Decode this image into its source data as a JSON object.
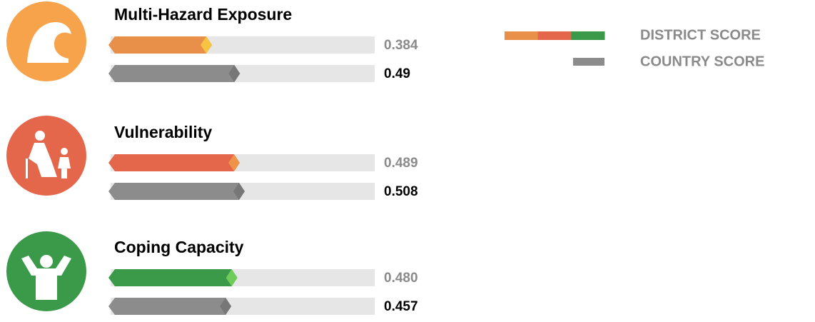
{
  "chart_data": [
    {
      "type": "bar",
      "title": "Multi-Hazard Exposure",
      "xlim": [
        0,
        1
      ],
      "series": [
        {
          "name": "DISTRICT SCORE",
          "color": "#e8904a",
          "tip_color": "#f6c343",
          "label_color": "#8a8a8a",
          "values": [
            0.384
          ],
          "value_labels": [
            "0.384"
          ]
        },
        {
          "name": "COUNTRY SCORE",
          "color": "#8c8c8c",
          "tip_color": "#777777",
          "label_color": "#000000",
          "values": [
            0.49
          ],
          "value_labels": [
            "0.49"
          ]
        }
      ]
    },
    {
      "type": "bar",
      "title": "Vulnerability",
      "xlim": [
        0,
        1
      ],
      "series": [
        {
          "name": "DISTRICT SCORE",
          "color": "#e4664b",
          "tip_color": "#ee9448",
          "label_color": "#8a8a8a",
          "values": [
            0.489
          ],
          "value_labels": [
            "0.489"
          ]
        },
        {
          "name": "COUNTRY SCORE",
          "color": "#8c8c8c",
          "tip_color": "#777777",
          "label_color": "#000000",
          "values": [
            0.508
          ],
          "value_labels": [
            "0.508"
          ]
        }
      ]
    },
    {
      "type": "bar",
      "title": "Coping Capacity",
      "xlim": [
        0,
        1
      ],
      "series": [
        {
          "name": "DISTRICT SCORE",
          "color": "#3a9a4a",
          "tip_color": "#6fcb5a",
          "label_color": "#8a8a8a",
          "values": [
            0.48
          ],
          "value_labels": [
            "0.480"
          ]
        },
        {
          "name": "COUNTRY SCORE",
          "color": "#8c8c8c",
          "tip_color": "#777777",
          "label_color": "#000000",
          "values": [
            0.457
          ],
          "value_labels": [
            "0.457"
          ]
        }
      ]
    }
  ]
}
